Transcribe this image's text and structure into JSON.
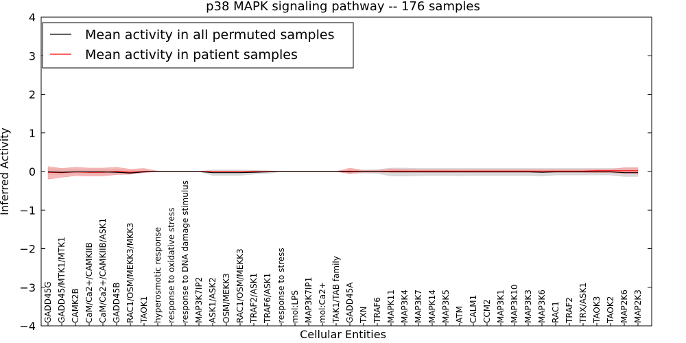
{
  "chart_data": {
    "type": "line",
    "title": "p38 MAPK signaling pathway -- 176 samples",
    "xlabel": "Cellular Entities",
    "ylabel": "Inferred Activity",
    "ylim": [
      -4,
      4
    ],
    "yticks": [
      -4,
      -3,
      -2,
      -1,
      0,
      1,
      2,
      3,
      4
    ],
    "ytick_labels": [
      "−4",
      "−3",
      "−2",
      "−1",
      "0",
      "1",
      "2",
      "3",
      "4"
    ],
    "legend_position": "top-left",
    "categories": [
      "GADD45G",
      "GADD45/MTK1/MTK1",
      "CAMK2B",
      "CaM/Ca2+/CAMKIIB",
      "CaM/Ca2+/CAMKIIB/ASK1",
      "GADD45B",
      "RAC1/OSM/MEKK3/MKK3",
      "TAOK1",
      "hyperosmotic response",
      "response to oxidative stress",
      "response to DNA damage stimulus",
      "MAP3K7IP2",
      "ASK1/ASK2",
      "OSM/MEKK3",
      "RAC1/OSM/MEKK3",
      "TRAF2/ASK1",
      "TRAF6/ASK1",
      "response to stress",
      "mol:LPS",
      "MAP3K7IP1",
      "mol:Ca2+",
      "TAK1/TAB family",
      "GADD45A",
      "TXN",
      "TRAF6",
      "MAPK11",
      "MAP3K4",
      "MAP3K7",
      "MAPK14",
      "MAP3K5",
      "ATM",
      "CALM1",
      "CCM2",
      "MAP3K1",
      "MAP3K10",
      "MAP3K3",
      "MAP3K6",
      "RAC1",
      "TRAF2",
      "TRX/ASK1",
      "TAOK3",
      "TAOK2",
      "MAP2K6",
      "MAP2K3"
    ],
    "series": [
      {
        "name": "Mean activity in all permuted samples",
        "color": "#000000",
        "values": [
          -0.01,
          -0.02,
          -0.01,
          -0.01,
          -0.01,
          -0.02,
          -0.04,
          -0.01,
          0.0,
          0.0,
          0.0,
          0.0,
          -0.03,
          -0.03,
          -0.03,
          -0.02,
          -0.01,
          0.0,
          0.0,
          0.0,
          0.0,
          0.0,
          -0.01,
          0.0,
          0.0,
          -0.01,
          -0.01,
          -0.01,
          -0.01,
          -0.01,
          -0.01,
          -0.01,
          -0.01,
          -0.01,
          -0.01,
          -0.01,
          -0.02,
          -0.01,
          -0.01,
          -0.01,
          -0.01,
          -0.01,
          -0.03,
          -0.03
        ],
        "band": {
          "color": "#cccccc",
          "lower": [
            -0.08,
            -0.08,
            -0.07,
            -0.07,
            -0.07,
            -0.08,
            -0.07,
            -0.03,
            0.0,
            0.0,
            0.0,
            0.0,
            -0.1,
            -0.1,
            -0.1,
            -0.07,
            -0.05,
            0.0,
            0.0,
            0.0,
            0.0,
            0.0,
            -0.05,
            -0.04,
            -0.05,
            -0.12,
            -0.12,
            -0.11,
            -0.1,
            -0.1,
            -0.11,
            -0.1,
            -0.1,
            -0.1,
            -0.1,
            -0.1,
            -0.12,
            -0.09,
            -0.09,
            -0.09,
            -0.09,
            -0.09,
            -0.13,
            -0.13
          ],
          "upper": [
            0.08,
            0.07,
            0.06,
            0.06,
            0.06,
            0.06,
            0.03,
            0.02,
            0.0,
            0.0,
            0.0,
            0.0,
            0.04,
            0.04,
            0.04,
            0.03,
            0.02,
            0.0,
            0.0,
            0.0,
            0.0,
            0.0,
            0.04,
            0.04,
            0.05,
            0.09,
            0.09,
            0.08,
            0.08,
            0.08,
            0.08,
            0.08,
            0.08,
            0.08,
            0.08,
            0.08,
            0.08,
            0.08,
            0.08,
            0.08,
            0.08,
            0.08,
            0.08,
            0.08
          ]
        }
      },
      {
        "name": "Mean activity in patient samples",
        "color": "#ff0000",
        "values": [
          -0.02,
          -0.03,
          -0.01,
          -0.02,
          -0.02,
          0.0,
          -0.02,
          0.0,
          0.0,
          0.0,
          0.0,
          0.0,
          0.0,
          0.0,
          0.0,
          0.0,
          0.0,
          0.0,
          0.0,
          0.0,
          0.0,
          0.0,
          0.01,
          0.0,
          0.0,
          0.01,
          0.01,
          0.01,
          0.01,
          0.01,
          0.01,
          0.01,
          0.01,
          0.01,
          0.01,
          0.01,
          0.01,
          0.01,
          0.01,
          0.01,
          0.02,
          0.02,
          0.02,
          0.02
        ],
        "band": {
          "color": "#f4a0a0",
          "lower": [
            -0.2,
            -0.15,
            -0.11,
            -0.12,
            -0.12,
            -0.08,
            -0.07,
            -0.03,
            0.0,
            0.0,
            0.0,
            0.0,
            0.0,
            0.0,
            0.0,
            0.0,
            0.0,
            0.0,
            0.0,
            0.0,
            0.0,
            0.0,
            -0.06,
            -0.02,
            -0.02,
            -0.02,
            -0.02,
            -0.02,
            -0.02,
            -0.02,
            -0.02,
            -0.02,
            -0.02,
            -0.02,
            -0.02,
            -0.02,
            -0.02,
            -0.02,
            -0.02,
            -0.02,
            -0.03,
            -0.03,
            -0.06,
            -0.06
          ],
          "upper": [
            0.13,
            0.08,
            0.11,
            0.09,
            0.09,
            0.11,
            0.06,
            0.08,
            0.01,
            0.0,
            0.0,
            0.0,
            0.0,
            0.0,
            0.0,
            0.0,
            0.0,
            0.0,
            0.0,
            0.0,
            0.0,
            0.0,
            0.09,
            0.03,
            0.03,
            0.07,
            0.06,
            0.05,
            0.05,
            0.05,
            0.05,
            0.05,
            0.05,
            0.05,
            0.05,
            0.05,
            0.05,
            0.05,
            0.05,
            0.05,
            0.06,
            0.06,
            0.1,
            0.1
          ]
        }
      }
    ]
  }
}
